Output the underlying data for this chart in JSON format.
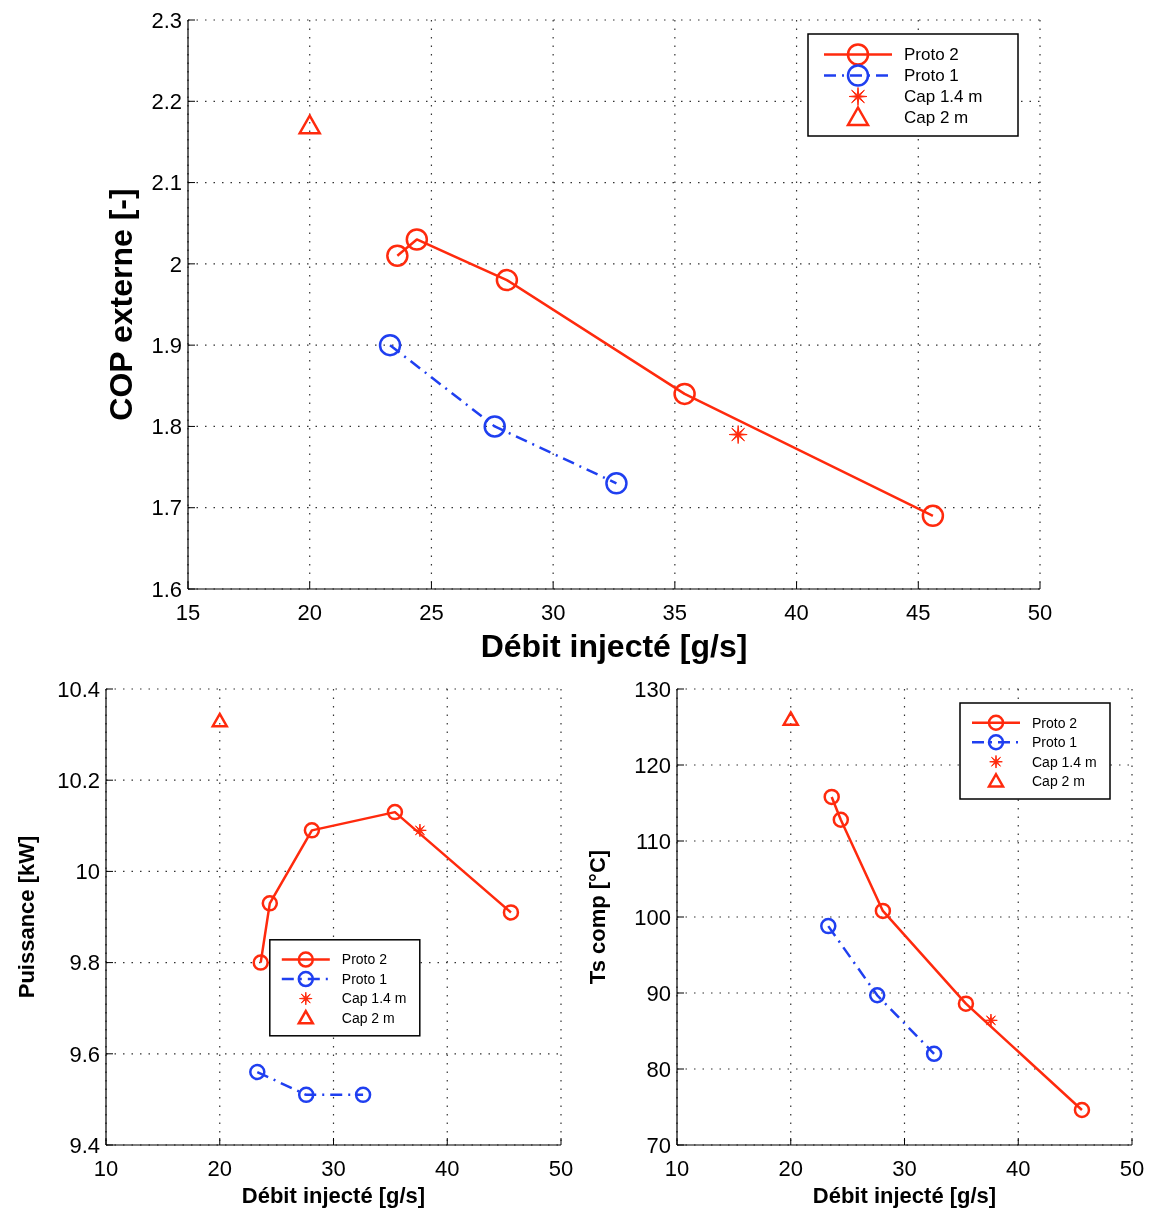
{
  "chart_data": [
    {
      "type": "line",
      "xlabel": "Débit injecté [g/s]",
      "ylabel": "COP externe [-]",
      "xlim": [
        15,
        50
      ],
      "xticks": [
        15,
        20,
        25,
        30,
        35,
        40,
        45,
        50
      ],
      "ylim": [
        1.6,
        2.3
      ],
      "yticks": [
        1.6,
        1.7,
        1.8,
        1.9,
        2,
        2.1,
        2.2,
        2.3
      ],
      "grid": true,
      "legend": "top right",
      "series": [
        {
          "name": "Proto 2",
          "color": "#ff2a0d",
          "x": [
            23.6,
            24.4,
            28.1,
            35.4,
            45.6
          ],
          "values": [
            2.01,
            2.03,
            1.98,
            1.84,
            1.69
          ],
          "marker": "circle",
          "line_style": "solid"
        },
        {
          "name": "Proto 1",
          "color": "#1f3ff0",
          "x": [
            23.3,
            27.6,
            32.6
          ],
          "values": [
            1.9,
            1.8,
            1.73
          ],
          "marker": "circle",
          "line_style": "dashdot"
        },
        {
          "name": "Cap 1.4 m",
          "type": "scatter",
          "color": "#ff2a0d",
          "x": [
            37.6
          ],
          "values": [
            1.79
          ],
          "marker": "star"
        },
        {
          "name": "Cap 2 m",
          "type": "scatter",
          "color": "#ff2a0d",
          "x": [
            20
          ],
          "values": [
            2.17
          ],
          "marker": "triangle"
        }
      ]
    },
    {
      "type": "line",
      "xlabel": "Débit injecté [g/s]",
      "ylabel": "Puissance [kW]",
      "xlim": [
        10,
        50
      ],
      "xticks": [
        10,
        20,
        30,
        40,
        50
      ],
      "ylim": [
        9.4,
        10.4
      ],
      "yticks": [
        9.4,
        9.6,
        9.8,
        10,
        10.2,
        10.4
      ],
      "grid": true,
      "legend": "center",
      "series": [
        {
          "name": "Proto 2",
          "color": "#ff2a0d",
          "x": [
            23.6,
            24.4,
            28.1,
            35.4,
            45.6
          ],
          "values": [
            9.8,
            9.93,
            10.09,
            10.13,
            9.91
          ],
          "marker": "circle",
          "line_style": "solid"
        },
        {
          "name": "Proto 1",
          "color": "#1f3ff0",
          "x": [
            23.3,
            27.6,
            32.6
          ],
          "values": [
            9.56,
            9.51,
            9.51
          ],
          "marker": "circle",
          "line_style": "dashdot"
        },
        {
          "name": "Cap 1.4 m",
          "type": "scatter",
          "color": "#ff2a0d",
          "x": [
            37.6
          ],
          "values": [
            10.09
          ],
          "marker": "star"
        },
        {
          "name": "Cap 2 m",
          "type": "scatter",
          "color": "#ff2a0d",
          "x": [
            20
          ],
          "values": [
            10.33
          ],
          "marker": "triangle"
        }
      ]
    },
    {
      "type": "line",
      "xlabel": "Débit injecté [g/s]",
      "ylabel": "Ts comp [°C]",
      "xlim": [
        10,
        50
      ],
      "xticks": [
        10,
        20,
        30,
        40,
        50
      ],
      "ylim": [
        70,
        130
      ],
      "yticks": [
        70,
        80,
        90,
        100,
        110,
        120,
        130
      ],
      "grid": true,
      "legend": "top right",
      "series": [
        {
          "name": "Proto 2",
          "color": "#ff2a0d",
          "x": [
            23.6,
            24.4,
            28.1,
            35.4,
            45.6
          ],
          "values": [
            115.8,
            112.8,
            100.8,
            88.6,
            74.6
          ],
          "marker": "circle",
          "line_style": "solid"
        },
        {
          "name": "Proto 1",
          "color": "#1f3ff0",
          "x": [
            23.3,
            27.6,
            32.6
          ],
          "values": [
            98.8,
            89.7,
            82
          ],
          "marker": "circle",
          "line_style": "dashdot"
        },
        {
          "name": "Cap 1.4 m",
          "type": "scatter",
          "color": "#ff2a0d",
          "x": [
            37.6
          ],
          "values": [
            86.4
          ],
          "marker": "star"
        },
        {
          "name": "Cap 2 m",
          "type": "scatter",
          "color": "#ff2a0d",
          "x": [
            20
          ],
          "values": [
            126
          ],
          "marker": "triangle"
        }
      ]
    }
  ]
}
